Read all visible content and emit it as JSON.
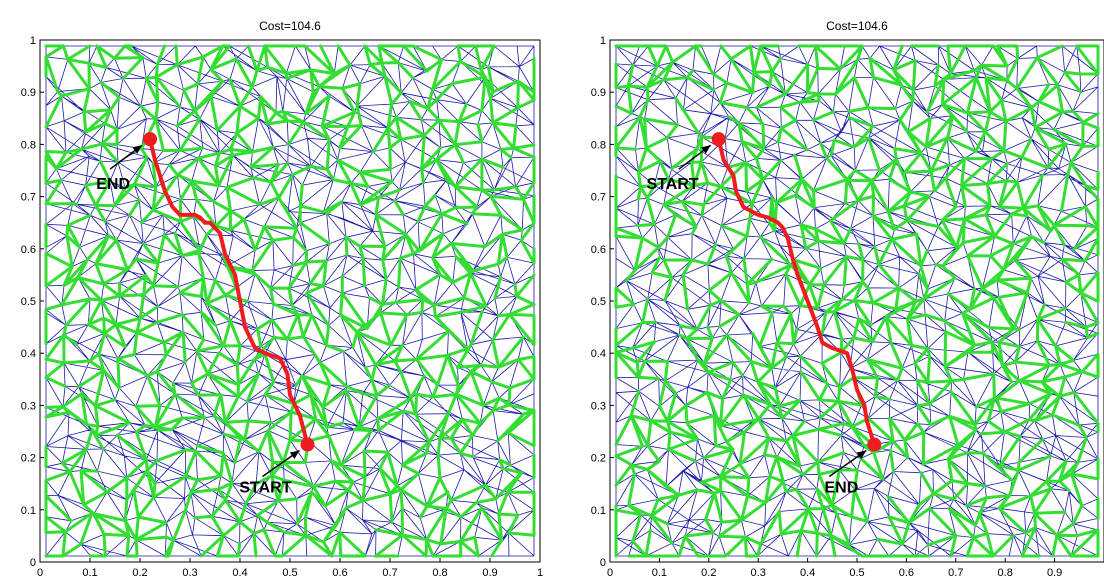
{
  "chart_data": [
    {
      "type": "line",
      "title": "Cost=104.6",
      "xlim": [
        0,
        1
      ],
      "ylim": [
        0,
        1
      ],
      "xticks": [
        "0",
        "0.1",
        "0.2",
        "0.3",
        "0.4",
        "0.5",
        "0.6",
        "0.7",
        "0.8",
        "0.9",
        "1"
      ],
      "yticks": [
        "0",
        "0.1",
        "0.2",
        "0.3",
        "0.4",
        "0.5",
        "0.6",
        "0.7",
        "0.8",
        "0.9",
        "1"
      ],
      "grid": false,
      "colors": {
        "mesh_thin": "#1a1aa8",
        "mesh_thick": "#33dd33",
        "path": "#ee1c1c"
      },
      "path": {
        "x": [
          0.535,
          0.52,
          0.5,
          0.495,
          0.48,
          0.45,
          0.43,
          0.41,
          0.4,
          0.39,
          0.37,
          0.36,
          0.34,
          0.33,
          0.32,
          0.31,
          0.28,
          0.265,
          0.25,
          0.24,
          0.23,
          0.22
        ],
        "y": [
          0.225,
          0.28,
          0.32,
          0.36,
          0.39,
          0.4,
          0.41,
          0.45,
          0.5,
          0.55,
          0.59,
          0.63,
          0.65,
          0.65,
          0.66,
          0.665,
          0.665,
          0.68,
          0.71,
          0.74,
          0.77,
          0.81
        ]
      },
      "markers": [
        {
          "label": "END",
          "x": 0.22,
          "y": 0.81
        },
        {
          "label": "START",
          "x": 0.535,
          "y": 0.225
        }
      ]
    },
    {
      "type": "line",
      "title": "Cost=104.6",
      "xlim": [
        0,
        1
      ],
      "ylim": [
        0,
        1
      ],
      "xticks": [
        "0",
        "0.1",
        "0.2",
        "0.3",
        "0.4",
        "0.5",
        "0.6",
        "0.7",
        "0.8",
        "0.9"
      ],
      "yticks": [
        "0",
        "0.1",
        "0.2",
        "0.3",
        "0.4",
        "0.5",
        "0.6",
        "0.7",
        "0.8",
        "0.9",
        "1"
      ],
      "grid": false,
      "colors": {
        "mesh_thin": "#1a1aa8",
        "mesh_thick": "#33dd33",
        "path": "#ee1c1c"
      },
      "path": {
        "x": [
          0.22,
          0.23,
          0.25,
          0.255,
          0.27,
          0.3,
          0.32,
          0.34,
          0.35,
          0.36,
          0.37,
          0.38,
          0.4,
          0.42,
          0.43,
          0.45,
          0.48,
          0.49,
          0.5,
          0.515,
          0.52,
          0.535
        ],
        "y": [
          0.81,
          0.77,
          0.74,
          0.71,
          0.68,
          0.665,
          0.66,
          0.65,
          0.64,
          0.62,
          0.58,
          0.55,
          0.5,
          0.45,
          0.42,
          0.41,
          0.4,
          0.37,
          0.33,
          0.3,
          0.27,
          0.225
        ]
      },
      "markers": [
        {
          "label": "START",
          "x": 0.22,
          "y": 0.81
        },
        {
          "label": "END",
          "x": 0.535,
          "y": 0.225
        }
      ]
    }
  ]
}
